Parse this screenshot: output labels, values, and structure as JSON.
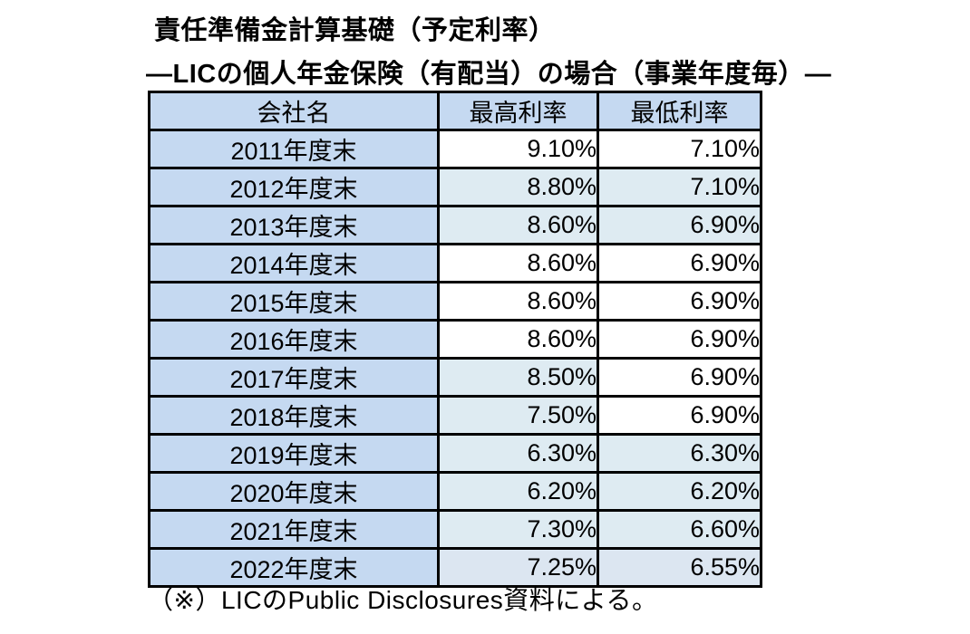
{
  "title": "責任準備金計算基礎（予定利率）",
  "subtitle": "―LICの個人年金保険（有配当）の場合（事業年度毎）―",
  "footnote": "（※）LICのPublic Disclosures資料による。",
  "colors": {
    "header_bg": "#c5d9f1",
    "year_col_bg": "#c5d9f1",
    "pale_cell_bg": "#deebf2",
    "pale_cell_bg_2022": "#dce6f1",
    "white_cell_bg": "#ffffff",
    "border": "#000000",
    "text": "#000000"
  },
  "chart_data": {
    "type": "table",
    "columns": [
      "会社名",
      "最高利率",
      "最低利率"
    ],
    "rows": [
      {
        "year": "2011年度末",
        "max": "9.10%",
        "min": "7.10%",
        "max_bg": "#ffffff",
        "min_bg": "#ffffff"
      },
      {
        "year": "2012年度末",
        "max": "8.80%",
        "min": "7.10%",
        "max_bg": "#deebf2",
        "min_bg": "#deebf2"
      },
      {
        "year": "2013年度末",
        "max": "8.60%",
        "min": "6.90%",
        "max_bg": "#deebf2",
        "min_bg": "#deebf2"
      },
      {
        "year": "2014年度末",
        "max": "8.60%",
        "min": "6.90%",
        "max_bg": "#ffffff",
        "min_bg": "#ffffff"
      },
      {
        "year": "2015年度末",
        "max": "8.60%",
        "min": "6.90%",
        "max_bg": "#ffffff",
        "min_bg": "#ffffff"
      },
      {
        "year": "2016年度末",
        "max": "8.60%",
        "min": "6.90%",
        "max_bg": "#ffffff",
        "min_bg": "#ffffff"
      },
      {
        "year": "2017年度末",
        "max": "8.50%",
        "min": "6.90%",
        "max_bg": "#deebf2",
        "min_bg": "#ffffff"
      },
      {
        "year": "2018年度末",
        "max": "7.50%",
        "min": "6.90%",
        "max_bg": "#deebf2",
        "min_bg": "#ffffff"
      },
      {
        "year": "2019年度末",
        "max": "6.30%",
        "min": "6.30%",
        "max_bg": "#deebf2",
        "min_bg": "#deebf2"
      },
      {
        "year": "2020年度末",
        "max": "6.20%",
        "min": "6.20%",
        "max_bg": "#deebf2",
        "min_bg": "#deebf2"
      },
      {
        "year": "2021年度末",
        "max": "7.30%",
        "min": "6.60%",
        "max_bg": "#deebf2",
        "min_bg": "#deebf2"
      },
      {
        "year": "2022年度末",
        "max": "7.25%",
        "min": "6.55%",
        "max_bg": "#dce6f1",
        "min_bg": "#dce6f1"
      }
    ]
  }
}
